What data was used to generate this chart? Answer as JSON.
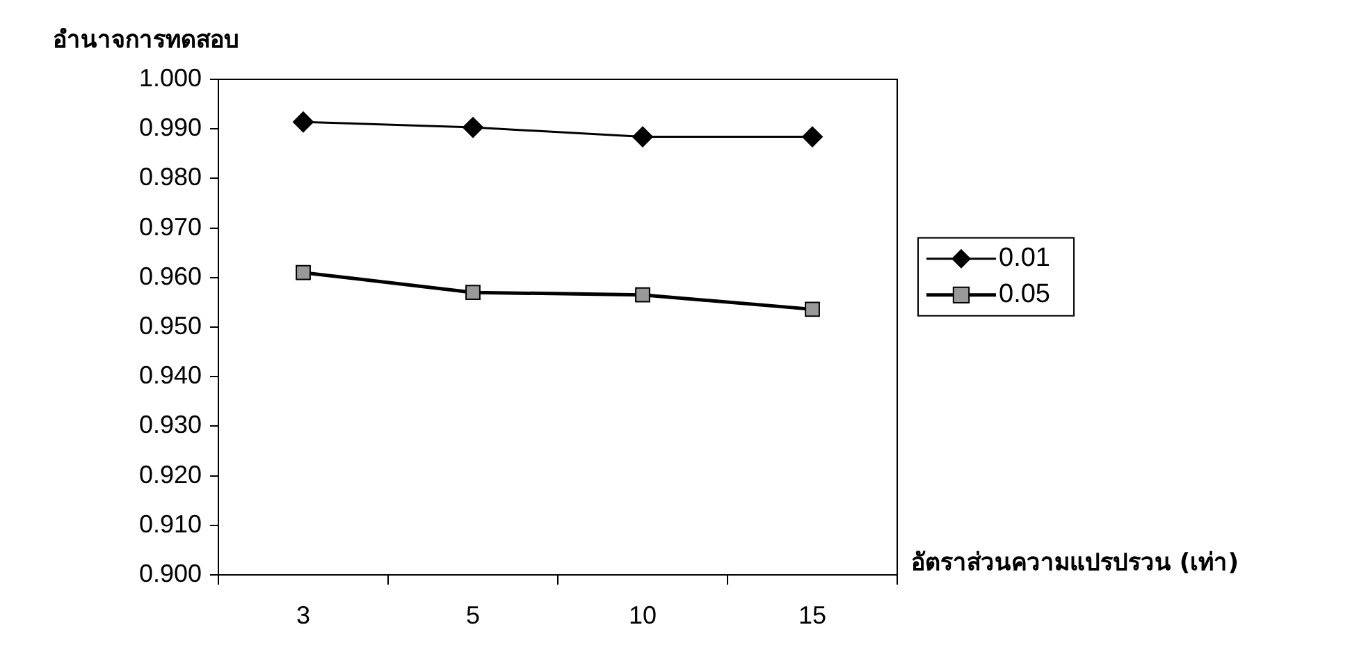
{
  "chart_data": {
    "type": "line",
    "ylabel": "อำนาจการทดสอบ",
    "xlabel": "อัตราส่วนความแปรปรวน (เท่า)",
    "categories": [
      "3",
      "5",
      "10",
      "15"
    ],
    "series": [
      {
        "name": "0.01",
        "color": "#000000",
        "marker": "diamond",
        "values": [
          0.9914,
          0.9903,
          0.9884,
          0.9884
        ]
      },
      {
        "name": "0.05",
        "color": "#999999",
        "marker": "square",
        "values": [
          0.961,
          0.957,
          0.9565,
          0.9536
        ]
      }
    ],
    "ylim": [
      0.9,
      1.0
    ],
    "yticks": [
      {
        "value": 0.9,
        "label": "0.900"
      },
      {
        "value": 0.91,
        "label": "0.910"
      },
      {
        "value": 0.92,
        "label": "0.920"
      },
      {
        "value": 0.93,
        "label": "0.930"
      },
      {
        "value": 0.94,
        "label": "0.940"
      },
      {
        "value": 0.95,
        "label": "0.950"
      },
      {
        "value": 0.96,
        "label": "0.960"
      },
      {
        "value": 0.97,
        "label": "0.970"
      },
      {
        "value": 0.98,
        "label": "0.980"
      },
      {
        "value": 0.99,
        "label": "0.990"
      },
      {
        "value": 1.0,
        "label": "1.000"
      }
    ],
    "grid": false,
    "legend": "right",
    "line_style": "solid"
  }
}
